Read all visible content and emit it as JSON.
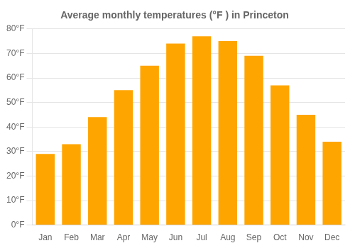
{
  "chart_data": {
    "type": "bar",
    "title": "Average monthly temperatures (°F ) in Princeton",
    "categories": [
      "Jan",
      "Feb",
      "Mar",
      "Apr",
      "May",
      "Jun",
      "Jul",
      "Aug",
      "Sep",
      "Oct",
      "Nov",
      "Dec"
    ],
    "values": [
      29,
      33,
      44,
      55,
      65,
      74,
      77,
      75,
      69,
      57,
      45,
      34
    ],
    "color": "#FFA500",
    "ylim": [
      0,
      80
    ],
    "yticks": [
      {
        "value": 0,
        "label": "0°F"
      },
      {
        "value": 10,
        "label": "10°F"
      },
      {
        "value": 20,
        "label": "20°F"
      },
      {
        "value": 30,
        "label": "30°F"
      },
      {
        "value": 40,
        "label": "40°F"
      },
      {
        "value": 50,
        "label": "50°F"
      },
      {
        "value": 60,
        "label": "60°F"
      },
      {
        "value": 70,
        "label": "70°F"
      },
      {
        "value": 80,
        "label": "80°F"
      }
    ],
    "grid": true
  }
}
